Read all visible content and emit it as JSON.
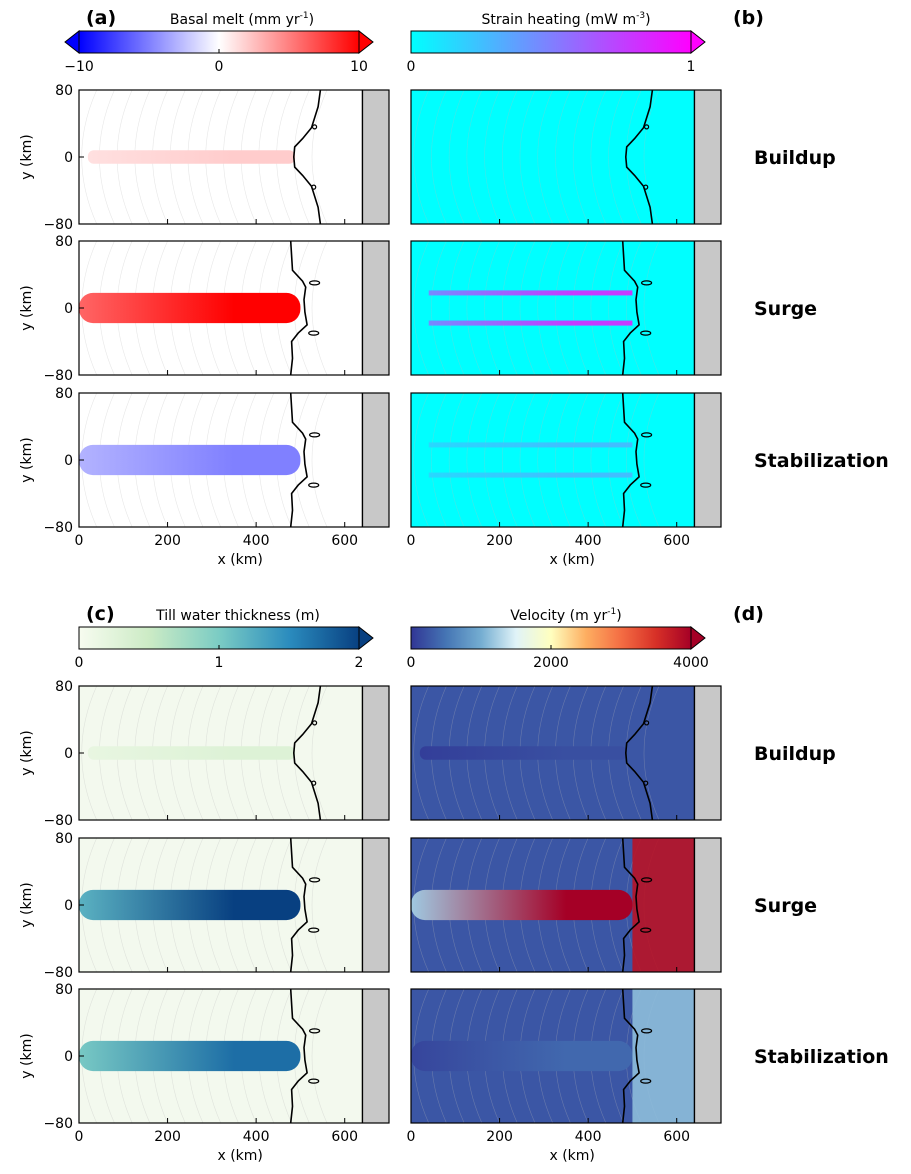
{
  "panels": [
    {
      "letter": "(a)",
      "colorbar": {
        "title": "Basal melt (mm yr",
        "title_sup": "-1",
        "title_end": ")",
        "ticks": [
          "−10",
          "0",
          "10"
        ],
        "tick_values": [
          -10,
          0,
          10
        ],
        "range": [
          -10,
          10
        ],
        "colors": [
          "#0000ff",
          "#ffffff",
          "#ff0000"
        ],
        "extend": "both"
      }
    },
    {
      "letter": "(b)",
      "colorbar": {
        "title": "Strain heating (mW m",
        "title_sup": "-3",
        "title_end": ")",
        "ticks": [
          "0",
          "1"
        ],
        "tick_values": [
          0,
          1
        ],
        "range": [
          0,
          1
        ],
        "colors": [
          "#00ffff",
          "#ff00ff"
        ],
        "extend": "max"
      }
    },
    {
      "letter": "(c)",
      "colorbar": {
        "title": "Till water thickness (m)",
        "title_sup": "",
        "title_end": "",
        "ticks": [
          "0",
          "1",
          "2"
        ],
        "tick_values": [
          0,
          1,
          2
        ],
        "range": [
          0,
          2
        ],
        "colors": [
          "#f7fcf0",
          "#ccebc5",
          "#7bccc4",
          "#2b8cbe",
          "#084081"
        ],
        "extend": "max"
      }
    },
    {
      "letter": "(d)",
      "colorbar": {
        "title": "Velocity (m yr",
        "title_sup": "-1",
        "title_end": ")",
        "ticks": [
          "0",
          "2000",
          "4000"
        ],
        "tick_values": [
          0,
          2000,
          4000
        ],
        "range": [
          0,
          4000
        ],
        "colors": [
          "#313695",
          "#4575b4",
          "#74add1",
          "#e0f3f8",
          "#ffffbf",
          "#fdae61",
          "#f46d43",
          "#d73027",
          "#a50026"
        ],
        "extend": "max"
      }
    }
  ],
  "phases": [
    "Buildup",
    "Surge",
    "Stabilization"
  ],
  "chart_data": {
    "type": "heatmap",
    "xlabel": "x (km)",
    "ylabel": "y (km)",
    "xlim": [
      0,
      700
    ],
    "ylim": [
      -80,
      80
    ],
    "xticks": [
      0,
      200,
      400,
      600
    ],
    "yticks": [
      -80,
      0,
      80
    ],
    "ocean_boundary_x_km": 640,
    "fields": [
      {
        "name": "Basal melt",
        "phase_values": {
          "Buildup": 2,
          "Surge": 10,
          "Stabilization": -5
        }
      },
      {
        "name": "Strain heating",
        "phase_values": {
          "Buildup": 0,
          "Surge": 0.9,
          "Stabilization": 0.3
        }
      },
      {
        "name": "Till water thickness",
        "phase_values": {
          "Buildup": 0.3,
          "Surge": 2,
          "Stabilization": 1.7
        }
      },
      {
        "name": "Velocity",
        "phase_values": {
          "Buildup": 200,
          "Surge": 4000,
          "Stabilization": 400
        }
      }
    ]
  }
}
